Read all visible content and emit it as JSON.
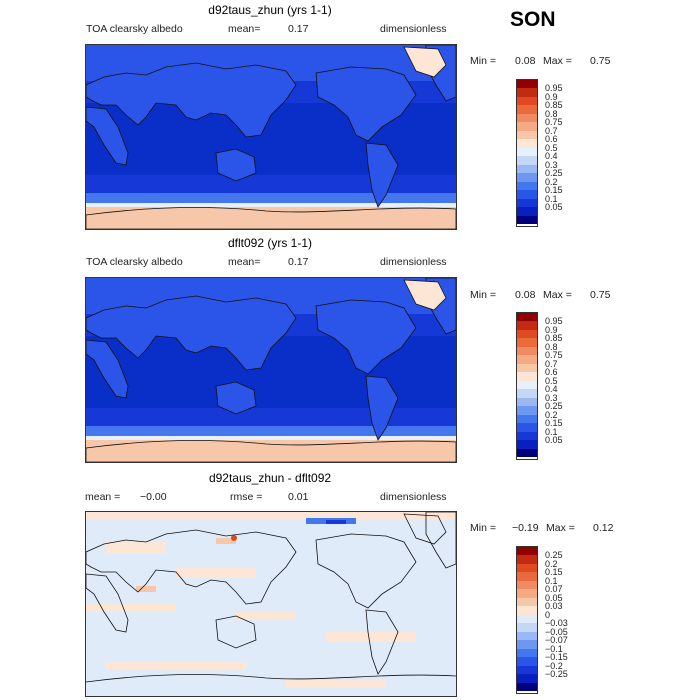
{
  "season": "SON",
  "panels": [
    {
      "title": "d92taus_zhun (yrs 1-1)",
      "left_label": "TOA clearsky albedo",
      "mid_label": "mean=",
      "mid_value": "0.17",
      "units": "dimensionless",
      "min_label": "Min =",
      "min_value": "0.08",
      "max_label": "Max =",
      "max_value": "0.75",
      "colorbar_colors": [
        "#00007a",
        "#0a1fbf",
        "#1638d6",
        "#2b55e8",
        "#4477ee",
        "#6d98f2",
        "#9ab8f5",
        "#c4d7f7",
        "#e8f0fb",
        "#fde6d6",
        "#f7c7aa",
        "#f4aa85",
        "#f08a60",
        "#ea6a3c",
        "#e04a20",
        "#c42a10",
        "#900000"
      ],
      "colorbar_labels": [
        "0.95",
        "0.9",
        "0.85",
        "0.8",
        "0.75",
        "0.7",
        "0.6",
        "0.5",
        "0.4",
        "0.3",
        "0.25",
        "0.2",
        "0.15",
        "0.1",
        "0.05"
      ]
    },
    {
      "title": "dflt092 (yrs 1-1)",
      "left_label": "TOA clearsky albedo",
      "mid_label": "mean=",
      "mid_value": "0.17",
      "units": "dimensionless",
      "min_label": "Min =",
      "min_value": "0.08",
      "max_label": "Max =",
      "max_value": "0.75",
      "colorbar_colors": [
        "#00007a",
        "#0a1fbf",
        "#1638d6",
        "#2b55e8",
        "#4477ee",
        "#6d98f2",
        "#9ab8f5",
        "#c4d7f7",
        "#e8f0fb",
        "#fde6d6",
        "#f7c7aa",
        "#f4aa85",
        "#f08a60",
        "#ea6a3c",
        "#e04a20",
        "#c42a10",
        "#900000"
      ],
      "colorbar_labels": [
        "0.95",
        "0.9",
        "0.85",
        "0.8",
        "0.75",
        "0.7",
        "0.6",
        "0.5",
        "0.4",
        "0.3",
        "0.25",
        "0.2",
        "0.15",
        "0.1",
        "0.05"
      ]
    },
    {
      "title": "d92taus_zhun - dflt092",
      "left_label": "mean =",
      "left_value": "−0.00",
      "mid_label": "rmse =",
      "mid_value": "0.01",
      "units": "dimensionless",
      "min_label": "Min =",
      "min_value": "−0.19",
      "max_label": "Max =",
      "max_value": "0.12",
      "colorbar_colors": [
        "#00007a",
        "#0a1fbf",
        "#1638d6",
        "#2b55e8",
        "#4477ee",
        "#6d98f2",
        "#9ab8f5",
        "#c4d7f7",
        "#e0ebfa",
        "#fde6d6",
        "#f7c7aa",
        "#f4aa85",
        "#f08a60",
        "#ea6a3c",
        "#e04a20",
        "#c42a10",
        "#900000"
      ],
      "colorbar_labels": [
        "0.25",
        "0.2",
        "0.15",
        "0.1",
        "0.07",
        "0.05",
        "0.03",
        "0",
        "−0.03",
        "−0.05",
        "−0.07",
        "−0.1",
        "−0.15",
        "−0.2",
        "−0.25"
      ]
    }
  ]
}
